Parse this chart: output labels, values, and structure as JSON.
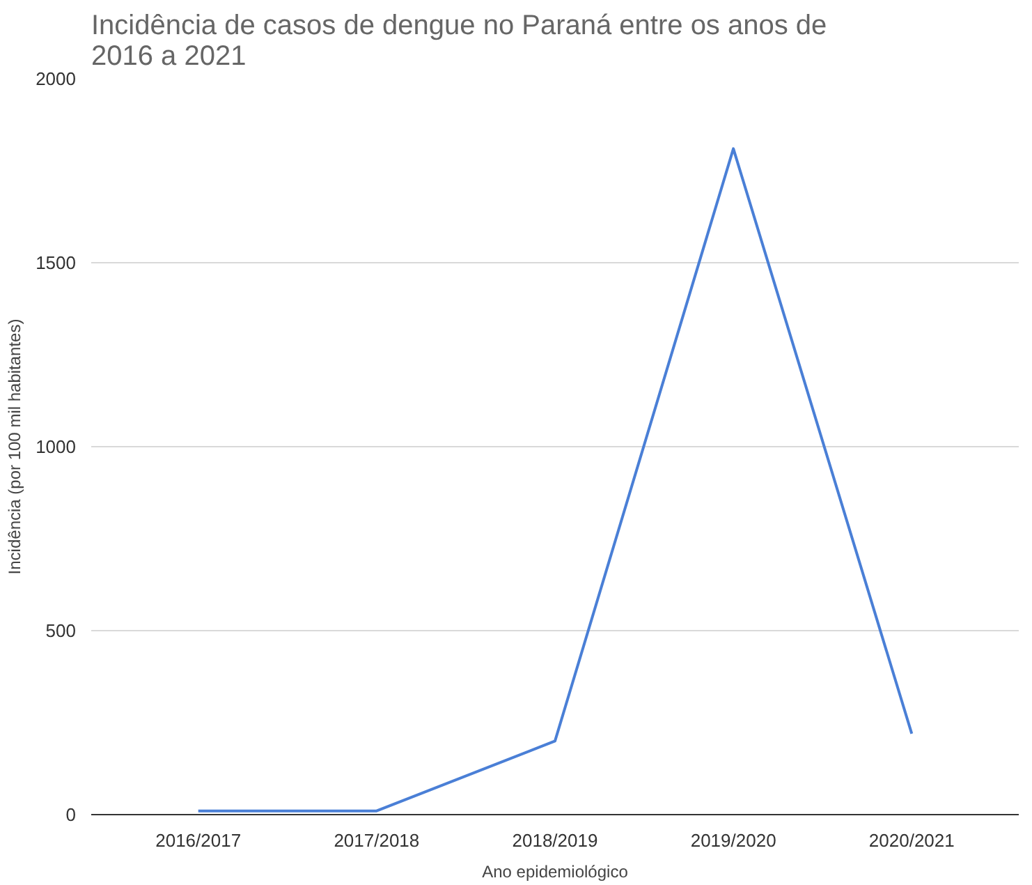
{
  "chart_data": {
    "type": "line",
    "title": "Incidência de casos de dengue no Paraná entre os anos de\n2016 a 2021",
    "xlabel": "Ano epidemiológico",
    "ylabel": "Incidência (por 100 mil habitantes)",
    "categories": [
      "2016/2017",
      "2017/2018",
      "2018/2019",
      "2019/2020",
      "2020/2021"
    ],
    "series": [
      {
        "color": "#4a7fd6",
        "values": [
          10,
          10,
          200,
          1810,
          220
        ]
      }
    ],
    "ylim": [
      0,
      2000
    ],
    "yticks": [
      0,
      500,
      1000,
      1500,
      2000
    ],
    "grid": "y",
    "marker": "none",
    "line_style": "solid"
  }
}
